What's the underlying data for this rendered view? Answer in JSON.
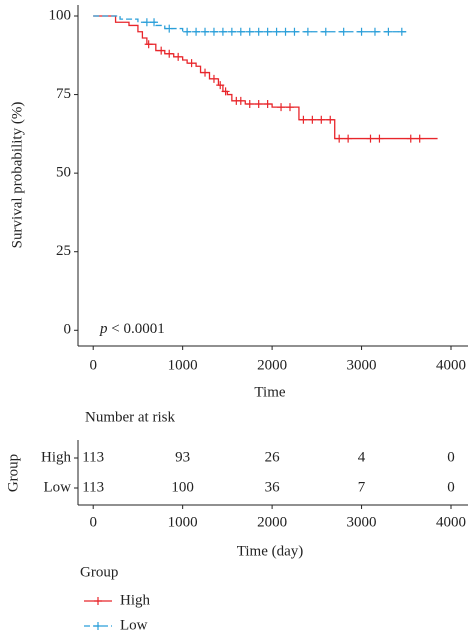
{
  "chart_data": {
    "type": "line",
    "step": true,
    "ylabel": "Survival probability (%)",
    "xlabel": "Time",
    "annotation": {
      "symbol": "p",
      "text": "< 0.0001"
    },
    "xlim": [
      -170,
      4190
    ],
    "ylim": [
      -5,
      103.5
    ],
    "xticks": [
      0,
      1000,
      2000,
      3000,
      4000
    ],
    "yticks": [
      0,
      25,
      50,
      75,
      100
    ],
    "series": [
      {
        "name": "High",
        "color": "#e8262b",
        "linestyle": "solid",
        "x": [
          0,
          250,
          400,
          500,
          550,
          600,
          700,
          800,
          900,
          1000,
          1050,
          1150,
          1200,
          1300,
          1400,
          1450,
          1500,
          1550,
          1700,
          2000,
          2300,
          2700,
          3850
        ],
        "values": [
          100,
          98,
          97,
          95,
          93,
          91,
          89,
          88,
          87,
          86,
          85,
          84,
          82,
          80,
          78,
          76,
          75,
          73,
          72,
          71,
          67,
          61,
          61
        ],
        "censor_x": [
          620,
          760,
          850,
          950,
          1100,
          1250,
          1350,
          1420,
          1480,
          1600,
          1650,
          1750,
          1850,
          1950,
          2100,
          2200,
          2350,
          2450,
          2550,
          2650,
          2750,
          2850,
          3100,
          3200,
          3550,
          3650
        ],
        "censor_y": [
          91,
          89,
          88,
          87,
          85,
          82,
          80,
          78,
          76,
          73,
          73,
          72,
          72,
          72,
          71,
          71,
          67,
          67,
          67,
          67,
          61,
          61,
          61,
          61,
          61,
          61
        ]
      },
      {
        "name": "Low",
        "color": "#2b9fd9",
        "linestyle": "dashed",
        "x": [
          0,
          300,
          500,
          700,
          800,
          1000,
          3500
        ],
        "values": [
          100,
          99,
          98,
          97,
          96,
          95,
          95
        ],
        "censor_x": [
          600,
          680,
          850,
          1050,
          1150,
          1250,
          1350,
          1450,
          1550,
          1650,
          1750,
          1850,
          1950,
          2050,
          2150,
          2250,
          2400,
          2600,
          2800,
          3000,
          3150,
          3300,
          3450
        ],
        "censor_y": [
          98,
          98,
          96,
          95,
          95,
          95,
          95,
          95,
          95,
          95,
          95,
          95,
          95,
          95,
          95,
          95,
          95,
          95,
          95,
          95,
          95,
          95,
          95
        ]
      }
    ],
    "legend": {
      "title": "Group"
    },
    "risk_table": {
      "title": "Number at risk",
      "ylabel": "Group",
      "xlabel": "Time (day)",
      "xticks": [
        0,
        1000,
        2000,
        3000,
        4000
      ],
      "rows": [
        {
          "name": "High",
          "color": "#e8262b",
          "values": [
            113,
            93,
            26,
            4,
            0
          ]
        },
        {
          "name": "Low",
          "color": "#2b9fd9",
          "values": [
            113,
            100,
            36,
            7,
            0
          ]
        }
      ]
    }
  }
}
